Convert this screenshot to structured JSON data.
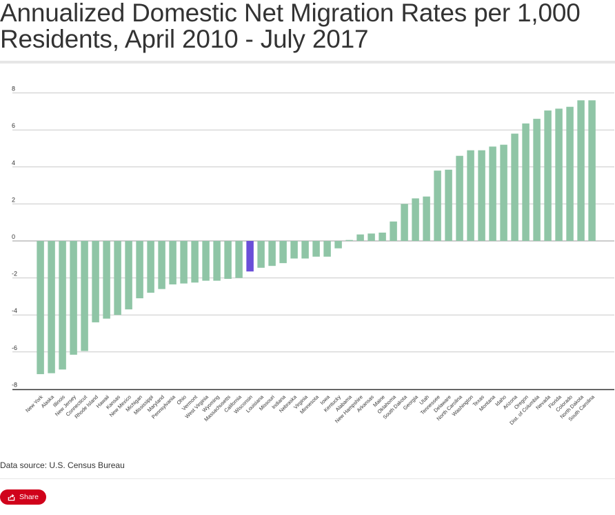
{
  "page": {
    "title_line1": "Annualized Domestic Net Migration Rates per 1,000",
    "title_line2": "Residents, April 2010 - July 2017",
    "source": "Data source: U.S. Census Bureau",
    "share_label": "Share"
  },
  "colors": {
    "bar": "#8fc5a6",
    "highlight": "#6a4fd8",
    "share_button": "#d0021b"
  },
  "chart_data": {
    "type": "bar",
    "title": "Annualized Domestic Net Migration Rates per 1,000 Residents, April 2010 - July 2017",
    "xlabel": "",
    "ylabel": "",
    "ylim": [
      -8,
      8
    ],
    "yticks": [
      8,
      6,
      4,
      2,
      0,
      -2,
      -4,
      -6,
      -8
    ],
    "grid": true,
    "highlight": "Wisconsin",
    "categories": [
      "New York",
      "Alaska",
      "Illinois",
      "New Jersey",
      "Connecticut",
      "Rhode Island",
      "Hawaii",
      "Kansas",
      "New Mexico",
      "Michigan",
      "Mississippi",
      "Maryland",
      "Pennsylvania",
      "Ohio",
      "Vermont",
      "West Virginia",
      "Wyoming",
      "Massachusetts",
      "California",
      "Wisconsin",
      "Louisiana",
      "Missouri",
      "Indiana",
      "Nebraska",
      "Virginia",
      "Minnesota",
      "Iowa",
      "Kentucky",
      "Alabama",
      "New Hampshire",
      "Arkansas",
      "Maine",
      "Oklahoma",
      "South Dakota",
      "Georgia",
      "Utah",
      "Tennessee",
      "Delaware",
      "North Carolina",
      "Washington",
      "Texas",
      "Montana",
      "Idaho",
      "Arizona",
      "Oregon",
      "Dist. of Columbia",
      "Nevada",
      "Florida",
      "Colorado",
      "North Dakota",
      "South Carolina"
    ],
    "values": [
      -7.2,
      -7.15,
      -6.95,
      -6.15,
      -5.95,
      -4.4,
      -4.2,
      -4.0,
      -3.7,
      -3.1,
      -2.8,
      -2.6,
      -2.35,
      -2.3,
      -2.25,
      -2.15,
      -2.15,
      -2.05,
      -2.0,
      -1.65,
      -1.45,
      -1.35,
      -1.2,
      -0.95,
      -0.95,
      -0.85,
      -0.85,
      -0.4,
      0.05,
      0.35,
      0.4,
      0.45,
      1.05,
      2.0,
      2.3,
      2.4,
      3.8,
      3.85,
      4.6,
      4.9,
      4.9,
      5.1,
      5.2,
      5.8,
      6.35,
      6.6,
      7.05,
      7.15,
      7.25,
      7.6,
      7.6
    ]
  }
}
